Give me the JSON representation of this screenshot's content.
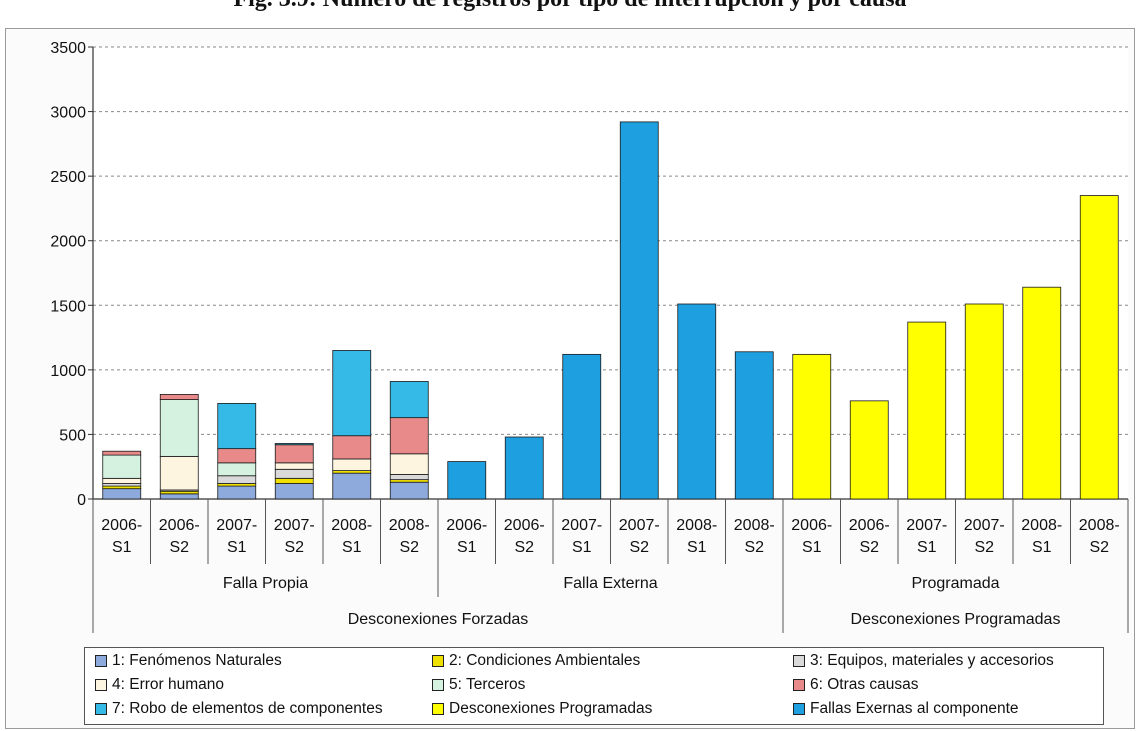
{
  "figure_title": "Fig. 3.9: Número de registros por tipo de interrupción y por causa",
  "chart_data": {
    "type": "bar",
    "stacked": true,
    "grid": true,
    "ylim": [
      0,
      3500
    ],
    "yticks": [
      0,
      500,
      1000,
      1500,
      2000,
      2500,
      3000,
      3500
    ],
    "categories": [
      {
        "top": "2006-",
        "bottom": "S1",
        "group": "Falla Propia",
        "supergroup": "Desconexiones Forzadas"
      },
      {
        "top": "2006-",
        "bottom": "S2",
        "group": "Falla Propia",
        "supergroup": "Desconexiones Forzadas"
      },
      {
        "top": "2007-",
        "bottom": "S1",
        "group": "Falla Propia",
        "supergroup": "Desconexiones Forzadas"
      },
      {
        "top": "2007-",
        "bottom": "S2",
        "group": "Falla Propia",
        "supergroup": "Desconexiones Forzadas"
      },
      {
        "top": "2008-",
        "bottom": "S1",
        "group": "Falla Propia",
        "supergroup": "Desconexiones Forzadas"
      },
      {
        "top": "2008-",
        "bottom": "S2",
        "group": "Falla Propia",
        "supergroup": "Desconexiones Forzadas"
      },
      {
        "top": "2006-",
        "bottom": "S1",
        "group": "Falla Externa",
        "supergroup": "Desconexiones Forzadas"
      },
      {
        "top": "2006-",
        "bottom": "S2",
        "group": "Falla Externa",
        "supergroup": "Desconexiones Forzadas"
      },
      {
        "top": "2007-",
        "bottom": "S1",
        "group": "Falla Externa",
        "supergroup": "Desconexiones Forzadas"
      },
      {
        "top": "2007-",
        "bottom": "S2",
        "group": "Falla Externa",
        "supergroup": "Desconexiones Forzadas"
      },
      {
        "top": "2008-",
        "bottom": "S1",
        "group": "Falla Externa",
        "supergroup": "Desconexiones Forzadas"
      },
      {
        "top": "2008-",
        "bottom": "S2",
        "group": "Falla Externa",
        "supergroup": "Desconexiones Forzadas"
      },
      {
        "top": "2006-",
        "bottom": "S1",
        "group": "Programada",
        "supergroup": "Desconexiones Programadas"
      },
      {
        "top": "2006-",
        "bottom": "S2",
        "group": "Programada",
        "supergroup": "Desconexiones Programadas"
      },
      {
        "top": "2007-",
        "bottom": "S1",
        "group": "Programada",
        "supergroup": "Desconexiones Programadas"
      },
      {
        "top": "2007-",
        "bottom": "S2",
        "group": "Programada",
        "supergroup": "Desconexiones Programadas"
      },
      {
        "top": "2008-",
        "bottom": "S1",
        "group": "Programada",
        "supergroup": "Desconexiones Programadas"
      },
      {
        "top": "2008-",
        "bottom": "S2",
        "group": "Programada",
        "supergroup": "Desconexiones Programadas"
      }
    ],
    "groups": [
      {
        "label": "Falla Propia",
        "span": 6
      },
      {
        "label": "Falla Externa",
        "span": 6
      },
      {
        "label": "Programada",
        "span": 6
      }
    ],
    "supergroups": [
      {
        "label": "Desconexiones Forzadas",
        "span": 12
      },
      {
        "label": "Desconexiones Programadas",
        "span": 6
      }
    ],
    "series": [
      {
        "name": "1: Fenómenos Naturales",
        "color": "#8ea9db",
        "values": [
          80,
          40,
          100,
          120,
          200,
          130,
          0,
          0,
          0,
          0,
          0,
          0,
          0,
          0,
          0,
          0,
          0,
          0
        ]
      },
      {
        "name": "2: Condiciones Ambientales",
        "color": "#f0e000",
        "values": [
          20,
          20,
          20,
          40,
          20,
          20,
          0,
          0,
          0,
          0,
          0,
          0,
          0,
          0,
          0,
          0,
          0,
          0
        ]
      },
      {
        "name": "3: Equipos, materiales y accesorios",
        "color": "#d9d9d9",
        "values": [
          20,
          10,
          60,
          70,
          0,
          40,
          0,
          0,
          0,
          0,
          0,
          0,
          0,
          0,
          0,
          0,
          0,
          0
        ]
      },
      {
        "name": "4: Error humano",
        "color": "#fdf5e0",
        "values": [
          40,
          260,
          0,
          50,
          90,
          160,
          0,
          0,
          0,
          0,
          0,
          0,
          0,
          0,
          0,
          0,
          0,
          0
        ]
      },
      {
        "name": "5: Terceros",
        "color": "#d4f2df",
        "values": [
          180,
          440,
          100,
          0,
          0,
          0,
          0,
          0,
          0,
          0,
          0,
          0,
          0,
          0,
          0,
          0,
          0,
          0
        ]
      },
      {
        "name": "6: Otras causas",
        "color": "#e88a8a",
        "values": [
          30,
          40,
          110,
          140,
          180,
          280,
          0,
          0,
          0,
          0,
          0,
          0,
          0,
          0,
          0,
          0,
          0,
          0
        ]
      },
      {
        "name": "7: Robo de elementos de componentes",
        "color": "#35b9e6",
        "values": [
          0,
          0,
          350,
          10,
          660,
          280,
          0,
          0,
          0,
          0,
          0,
          0,
          0,
          0,
          0,
          0,
          0,
          0
        ]
      },
      {
        "name": "Desconexiones Programadas",
        "color": "#ffff00",
        "values": [
          0,
          0,
          0,
          0,
          0,
          0,
          0,
          0,
          0,
          0,
          0,
          0,
          1120,
          760,
          1370,
          1510,
          1640,
          2350
        ]
      },
      {
        "name": "Fallas Exernas al componente",
        "color": "#1e9fe0",
        "values": [
          0,
          0,
          0,
          0,
          0,
          0,
          290,
          480,
          1120,
          2920,
          1510,
          1140,
          0,
          0,
          0,
          0,
          0,
          0
        ]
      }
    ]
  }
}
